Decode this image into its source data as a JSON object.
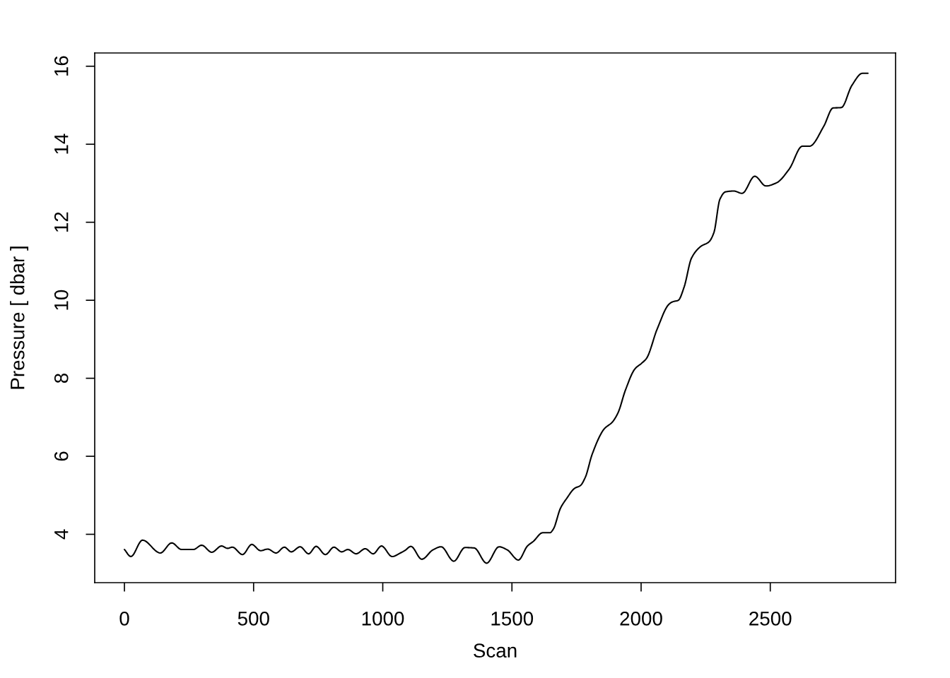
{
  "chart_data": {
    "type": "line",
    "xlabel": "Scan",
    "ylabel": "Pressure [ dbar ]",
    "x": [
      0,
      25,
      70,
      139,
      183,
      221,
      267,
      299,
      338,
      376,
      399,
      418,
      457,
      493,
      527,
      555,
      587,
      619,
      646,
      680,
      713,
      742,
      778,
      811,
      841,
      865,
      897,
      932,
      963,
      995,
      1036,
      1071,
      1085,
      1109,
      1151,
      1194,
      1226,
      1275,
      1318,
      1354,
      1402,
      1450,
      1482,
      1525,
      1560,
      1583,
      1619,
      1647,
      1660,
      1688,
      1711,
      1743,
      1765,
      1784,
      1811,
      1857,
      1889,
      1911,
      1939,
      1976,
      2003,
      2021,
      2062,
      2108,
      2122,
      2144,
      2167,
      2195,
      2231,
      2263,
      2282,
      2305,
      2327,
      2359,
      2391,
      2440,
      2483,
      2524,
      2574,
      2624,
      2652,
      2707,
      2743,
      2775,
      2816,
      2857,
      2878
    ],
    "values": [
      3.61,
      3.43,
      3.85,
      3.52,
      3.78,
      3.61,
      3.61,
      3.72,
      3.54,
      3.7,
      3.64,
      3.67,
      3.48,
      3.74,
      3.58,
      3.62,
      3.52,
      3.67,
      3.55,
      3.68,
      3.5,
      3.69,
      3.48,
      3.67,
      3.55,
      3.61,
      3.5,
      3.63,
      3.5,
      3.7,
      3.43,
      3.53,
      3.58,
      3.69,
      3.36,
      3.6,
      3.68,
      3.31,
      3.66,
      3.65,
      3.26,
      3.68,
      3.6,
      3.34,
      3.7,
      3.82,
      4.04,
      4.04,
      4.13,
      4.67,
      4.91,
      5.18,
      5.25,
      5.46,
      6.06,
      6.7,
      6.88,
      7.12,
      7.69,
      8.24,
      8.39,
      8.51,
      9.26,
      9.9,
      9.96,
      10.0,
      10.35,
      11.08,
      11.38,
      11.5,
      11.74,
      12.59,
      12.78,
      12.8,
      12.74,
      13.18,
      12.93,
      13.01,
      13.37,
      13.95,
      13.95,
      14.46,
      14.93,
      14.94,
      15.51,
      15.82,
      15.82
    ],
    "color": "#000000",
    "marker": "none",
    "line_style": "solid",
    "xlim": [
      -115,
      2985
    ],
    "ylim": [
      2.76,
      16.34
    ],
    "xticks": [
      0,
      500,
      1000,
      1500,
      2000,
      2500
    ],
    "yticks": [
      4,
      6,
      8,
      10,
      12,
      14,
      16
    ],
    "grid": false
  }
}
